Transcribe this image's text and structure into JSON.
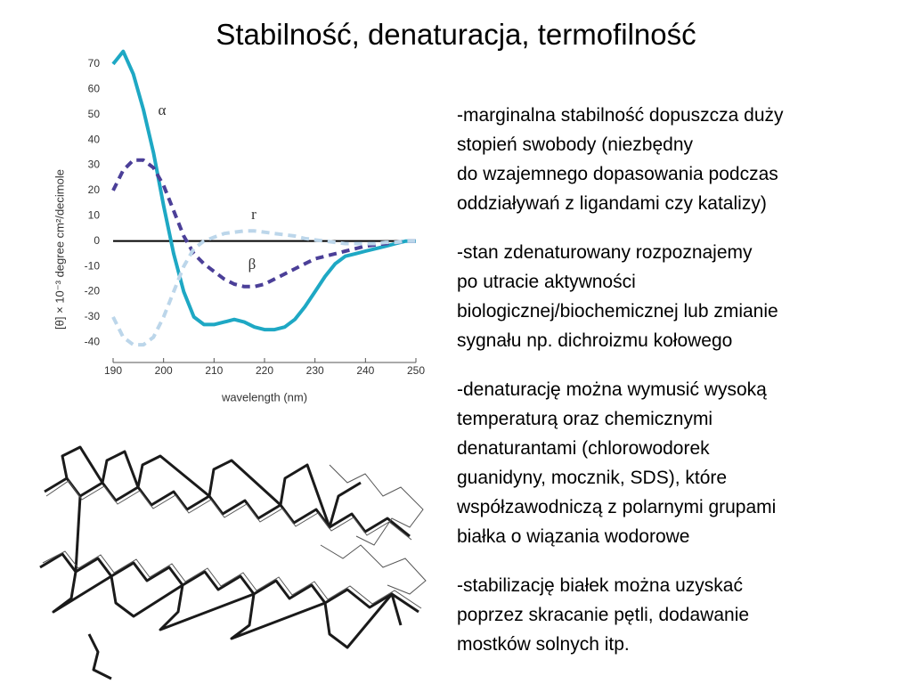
{
  "title": "Stabilność, denaturacja, termofilność",
  "bullets": [
    [
      "-marginalna stabilność dopuszcza duży",
      "stopień swobody (niezbędny",
      "do wzajemnego dopasowania podczas",
      "oddziaływań z ligandami czy katalizy)"
    ],
    [
      "-stan zdenaturowany rozpoznajemy",
      "po utracie aktywności",
      "biologicznej/biochemicznej lub zmianie",
      "sygnału np. dichroizmu kołowego"
    ],
    [
      "-denaturację można wymusić wysoką",
      "temperaturą oraz chemicznymi",
      "denaturantami (chlorowodorek",
      "guanidyny, mocznik, SDS), które",
      "współzawodniczą z polarnymi grupami",
      "białka o wiązania wodorowe"
    ],
    [
      "-stabilizację białek można uzyskać",
      "poprzez skracanie pętli, dodawanie",
      "mostków solnych itp."
    ]
  ],
  "chart_data": {
    "type": "line",
    "x_label": "wavelength (nm)",
    "y_label": "[θ] × 10⁻³  degree cm²/decimole",
    "x": [
      190,
      192,
      194,
      196,
      198,
      200,
      202,
      204,
      206,
      208,
      210,
      212,
      214,
      216,
      218,
      220,
      222,
      224,
      226,
      228,
      230,
      232,
      234,
      236,
      238,
      240,
      242,
      244,
      246,
      248,
      250
    ],
    "series": [
      {
        "name": "α",
        "color": "#1ea8c4",
        "dash": "solid",
        "values": [
          70,
          75,
          66,
          52,
          35,
          14,
          -5,
          -20,
          -30,
          -33,
          -33,
          -32,
          -31,
          -32,
          -34,
          -35,
          -35,
          -34,
          -31,
          -26,
          -20,
          -14,
          -9,
          -6,
          -5,
          -4,
          -3,
          -2,
          -1,
          0,
          0
        ]
      },
      {
        "name": "β",
        "color": "#4b3f98",
        "dash": "dashed",
        "values": [
          20,
          28,
          32,
          32,
          29,
          22,
          12,
          2,
          -5,
          -9,
          -12,
          -15,
          -17,
          -18,
          -18,
          -17,
          -15,
          -13,
          -11,
          -9,
          -7,
          -6,
          -5,
          -4,
          -3,
          -2,
          -1.5,
          -1,
          -0.5,
          0,
          0
        ]
      },
      {
        "name": "r",
        "color": "#bcd6ea",
        "dash": "dashed",
        "values": [
          -30,
          -38,
          -41,
          -41,
          -38,
          -30,
          -20,
          -10,
          -3,
          0,
          1.5,
          3,
          3.5,
          4,
          4,
          3.5,
          3,
          2.5,
          2,
          1,
          0.5,
          0,
          -0.5,
          -1,
          -1,
          -1,
          -1,
          -0.5,
          -0.5,
          0,
          0
        ]
      }
    ],
    "xlim": [
      190,
      250
    ],
    "xticks": [
      190,
      200,
      210,
      220,
      230,
      240,
      250
    ],
    "ylim": [
      -48,
      77
    ],
    "yticks": [
      70,
      60,
      50,
      40,
      30,
      20,
      10,
      0,
      -10,
      -20,
      -30,
      -40
    ]
  }
}
